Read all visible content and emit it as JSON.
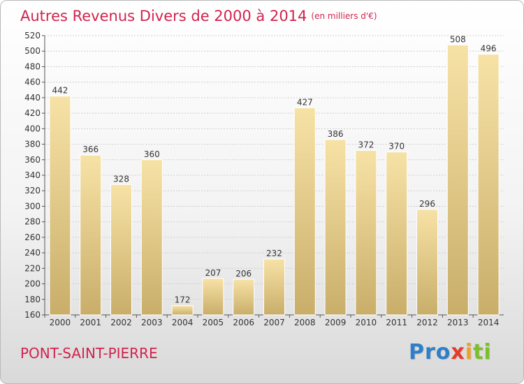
{
  "title": "Autres Revenus Divers de 2000 à 2014",
  "unit_note": "(en milliers d'€)",
  "commune": "PONT-SAINT-PIERRE",
  "logo": {
    "part1": "Pro",
    "part2": "x",
    "part3": "i",
    "part4": "ti"
  },
  "colors": {
    "accent": "#d1234e",
    "bar_top": "#f7e2a6",
    "bar_bottom": "#c9ae6a",
    "grid": "#cfcfcf"
  },
  "chart_data": {
    "type": "bar",
    "title": "Autres Revenus Divers de 2000 à 2014",
    "categories": [
      "2000",
      "2001",
      "2002",
      "2003",
      "2004",
      "2005",
      "2006",
      "2007",
      "2008",
      "2009",
      "2010",
      "2011",
      "2012",
      "2013",
      "2014"
    ],
    "values": [
      442,
      366,
      328,
      360,
      172,
      207,
      206,
      232,
      427,
      386,
      372,
      370,
      296,
      508,
      496
    ],
    "ylim": [
      160,
      520
    ],
    "yticks": [
      160,
      180,
      200,
      220,
      240,
      260,
      280,
      300,
      320,
      340,
      360,
      380,
      400,
      420,
      440,
      460,
      480,
      500,
      520
    ],
    "grid": true,
    "xlabel": "",
    "ylabel": ""
  }
}
